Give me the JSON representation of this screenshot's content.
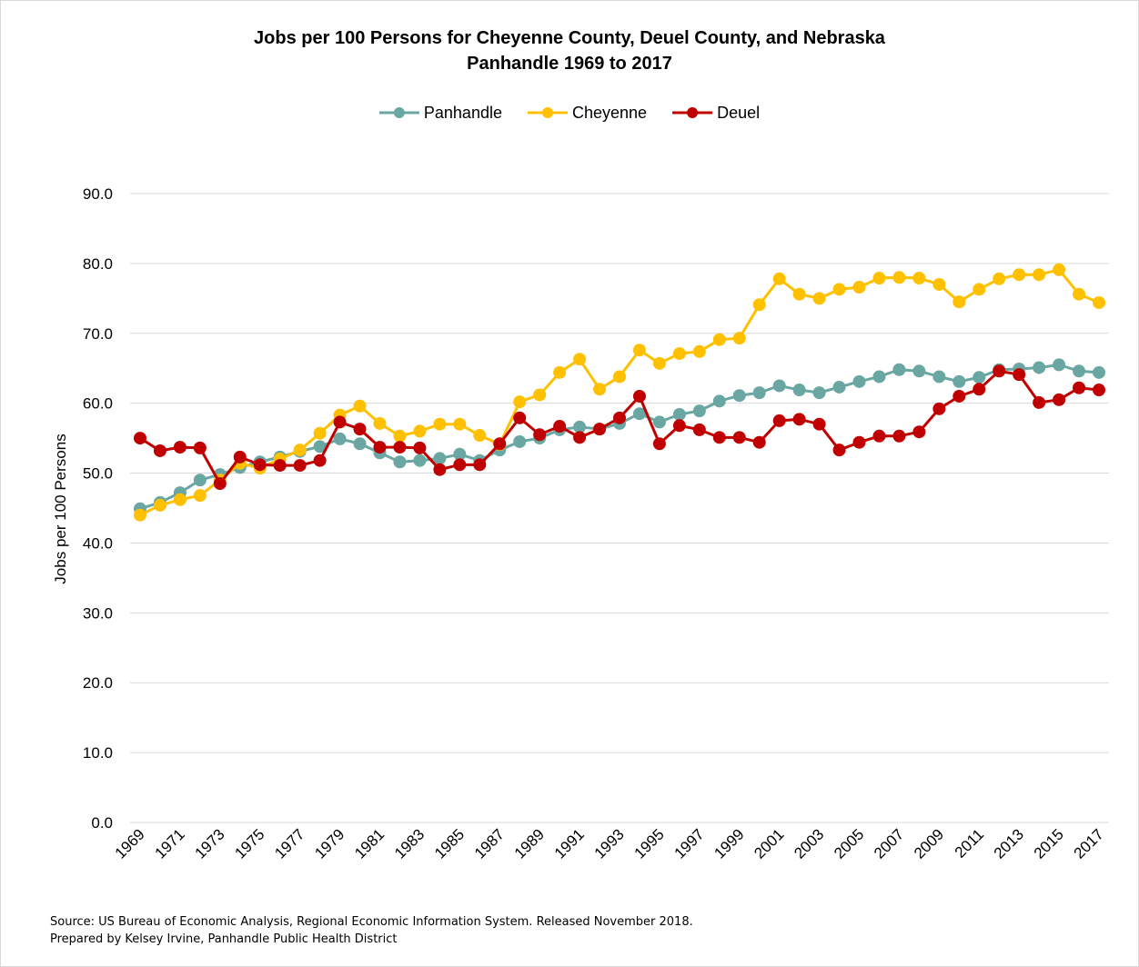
{
  "chart_data": {
    "type": "line",
    "title": "Jobs per 100 Persons for Cheyenne County, Deuel County, and Nebraska",
    "subtitle": "Panhandle 1969 to 2017",
    "y_label": "Jobs per 100 Persons",
    "source": "Source: US Bureau of Economic Analysis, Regional Economic Information System. Released November 2018.",
    "note": "Prepared by Kelsey Irvine, Panhandle Public Health District",
    "categories": [
      "1969",
      null,
      "1971",
      null,
      "1973",
      null,
      "1975",
      null,
      "1977",
      null,
      "1979",
      null,
      "1981",
      null,
      "1983",
      null,
      "1985",
      null,
      "1987",
      null,
      "1989",
      null,
      "1991",
      null,
      "1993",
      null,
      "1995",
      null,
      "1997",
      null,
      "1999",
      null,
      "2001",
      null,
      "2003",
      null,
      "2005",
      null,
      "2007",
      null,
      "2009",
      null,
      "2011",
      null,
      "2013",
      null,
      "2015",
      null,
      "2017"
    ],
    "series": [
      {
        "name": "Panhandle",
        "color": "#6aa6a2",
        "values": [
          44.9,
          45.8,
          47.2,
          49.0,
          49.8,
          50.8,
          51.6,
          52.3,
          53.1,
          53.8,
          54.9,
          54.2,
          52.9,
          51.6,
          51.8,
          52.1,
          52.7,
          51.8,
          53.3,
          54.5,
          55.0,
          56.2,
          56.6,
          56.3,
          57.1,
          58.5,
          57.3,
          58.4,
          58.9,
          60.3,
          61.1,
          61.5,
          62.5,
          61.9,
          61.5,
          62.3,
          63.1,
          63.8,
          64.8,
          64.6,
          63.8,
          63.1,
          63.7,
          64.8,
          64.9,
          65.1,
          65.5,
          64.6,
          64.4
        ]
      },
      {
        "name": "Cheyenne",
        "color": "#ffc000",
        "values": [
          44.0,
          45.4,
          46.2,
          46.8,
          49.0,
          51.4,
          50.7,
          52.0,
          53.3,
          55.7,
          58.3,
          59.6,
          57.1,
          55.3,
          56.0,
          57.0,
          57.0,
          55.4,
          54.1,
          60.2,
          61.2,
          64.4,
          66.3,
          62.0,
          63.8,
          67.6,
          65.7,
          67.1,
          67.4,
          69.1,
          69.3,
          74.1,
          77.8,
          75.6,
          75.0,
          76.3,
          76.6,
          77.9,
          78.0,
          77.9,
          77.0,
          74.5,
          76.3,
          77.8,
          78.4,
          78.4,
          79.1,
          75.6,
          74.4
        ]
      },
      {
        "name": "Deuel",
        "color": "#c00000",
        "values": [
          55.0,
          53.2,
          53.7,
          53.6,
          48.5,
          52.3,
          51.2,
          51.1,
          51.1,
          51.8,
          57.3,
          56.3,
          53.7,
          53.7,
          53.6,
          50.5,
          51.2,
          51.2,
          54.2,
          57.9,
          55.5,
          56.7,
          55.1,
          56.3,
          57.9,
          61.0,
          54.2,
          56.8,
          56.2,
          55.1,
          55.1,
          54.4,
          57.5,
          57.7,
          57.0,
          53.3,
          54.4,
          55.3,
          55.3,
          55.9,
          59.2,
          61.0,
          62.0,
          64.6,
          64.1,
          60.1,
          60.5,
          62.2,
          61.9
        ]
      }
    ],
    "ylim": [
      0,
      90
    ],
    "yticks": [
      {
        "value": 0,
        "label": "0.0"
      },
      {
        "value": 10,
        "label": "10.0"
      },
      {
        "value": 20,
        "label": "20.0"
      },
      {
        "value": 30,
        "label": "30.0"
      },
      {
        "value": 40,
        "label": "40.0"
      },
      {
        "value": 50,
        "label": "50.0"
      },
      {
        "value": 60,
        "label": "60.0"
      },
      {
        "value": 70,
        "label": "70.0"
      },
      {
        "value": 80,
        "label": "80.0"
      },
      {
        "value": 90,
        "label": "90.0"
      }
    ],
    "grid": true,
    "legend": "top"
  }
}
